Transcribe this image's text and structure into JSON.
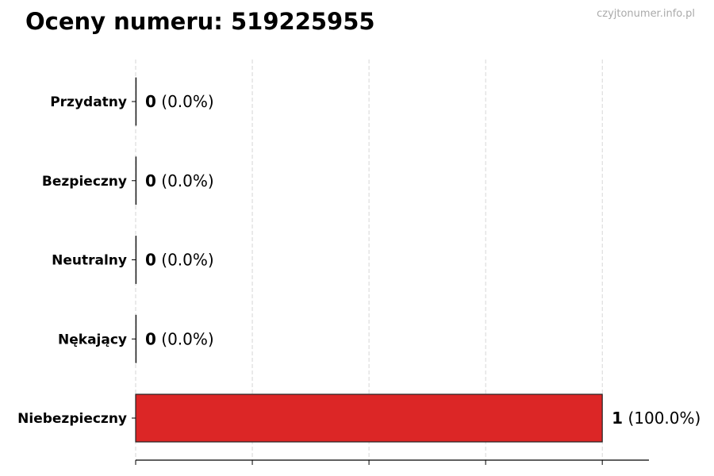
{
  "chart_data": {
    "type": "bar",
    "orientation": "horizontal",
    "title": "Oceny numeru: 519225955",
    "watermark": "czyjtonumer.info.pl",
    "categories": [
      "Przydatny",
      "Bezpieczny",
      "Neutralny",
      "Nękający",
      "Niebezpieczny"
    ],
    "values": [
      0,
      0,
      0,
      0,
      1
    ],
    "percent_labels": [
      "(0.0%)",
      "(0.0%)",
      "(0.0%)",
      "(0.0%)",
      "(100.0%)"
    ],
    "xlim": [
      0,
      1.1
    ],
    "xticks": [
      0,
      0.25,
      0.5,
      0.75,
      1.0
    ],
    "xtick_labels_shown": false,
    "grid": "x, dashed",
    "bar_color": "#dc2626",
    "xlabel": "",
    "ylabel": ""
  }
}
